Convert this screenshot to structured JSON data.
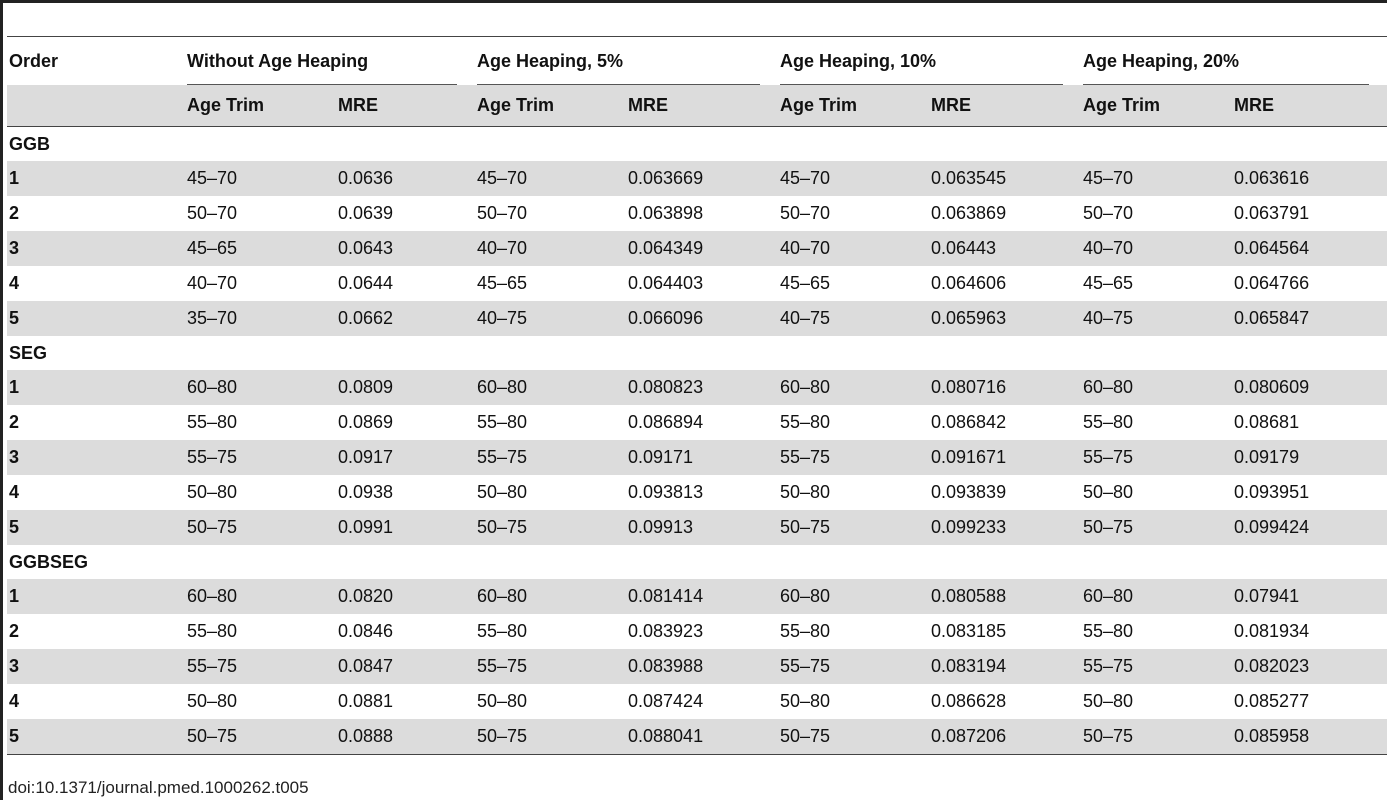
{
  "table": {
    "col_order": "Order",
    "groups": [
      "Without Age Heaping",
      "Age Heaping, 5%",
      "Age Heaping, 10%",
      "Age Heaping, 20%"
    ],
    "sub_age": "Age Trim",
    "sub_mre": "MRE",
    "sections": [
      {
        "name": "GGB",
        "rows": [
          [
            "1",
            "45–70",
            "0.0636",
            "45–70",
            "0.063669",
            "45–70",
            "0.063545",
            "45–70",
            "0.063616"
          ],
          [
            "2",
            "50–70",
            "0.0639",
            "50–70",
            "0.063898",
            "50–70",
            "0.063869",
            "50–70",
            "0.063791"
          ],
          [
            "3",
            "45–65",
            "0.0643",
            "40–70",
            "0.064349",
            "40–70",
            "0.06443",
            "40–70",
            "0.064564"
          ],
          [
            "4",
            "40–70",
            "0.0644",
            "45–65",
            "0.064403",
            "45–65",
            "0.064606",
            "45–65",
            "0.064766"
          ],
          [
            "5",
            "35–70",
            "0.0662",
            "40–75",
            "0.066096",
            "40–75",
            "0.065963",
            "40–75",
            "0.065847"
          ]
        ]
      },
      {
        "name": "SEG",
        "rows": [
          [
            "1",
            "60–80",
            "0.0809",
            "60–80",
            "0.080823",
            "60–80",
            "0.080716",
            "60–80",
            "0.080609"
          ],
          [
            "2",
            "55–80",
            "0.0869",
            "55–80",
            "0.086894",
            "55–80",
            "0.086842",
            "55–80",
            "0.08681"
          ],
          [
            "3",
            "55–75",
            "0.0917",
            "55–75",
            "0.09171",
            "55–75",
            "0.091671",
            "55–75",
            "0.09179"
          ],
          [
            "4",
            "50–80",
            "0.0938",
            "50–80",
            "0.093813",
            "50–80",
            "0.093839",
            "50–80",
            "0.093951"
          ],
          [
            "5",
            "50–75",
            "0.0991",
            "50–75",
            "0.09913",
            "50–75",
            "0.099233",
            "50–75",
            "0.099424"
          ]
        ]
      },
      {
        "name": "GGBSEG",
        "rows": [
          [
            "1",
            "60–80",
            "0.0820",
            "60–80",
            "0.081414",
            "60–80",
            "0.080588",
            "60–80",
            "0.07941"
          ],
          [
            "2",
            "55–80",
            "0.0846",
            "55–80",
            "0.083923",
            "55–80",
            "0.083185",
            "55–80",
            "0.081934"
          ],
          [
            "3",
            "55–75",
            "0.0847",
            "55–75",
            "0.083988",
            "55–75",
            "0.083194",
            "55–75",
            "0.082023"
          ],
          [
            "4",
            "50–80",
            "0.0881",
            "50–80",
            "0.087424",
            "50–80",
            "0.086628",
            "50–80",
            "0.085277"
          ],
          [
            "5",
            "50–75",
            "0.0888",
            "50–75",
            "0.088041",
            "50–75",
            "0.087206",
            "50–75",
            "0.085958"
          ]
        ]
      }
    ]
  },
  "footer": {
    "doi": "doi:10.1371/journal.pmed.1000262.t005"
  },
  "colors": {
    "shade": "#dcdcdc",
    "rule": "#444444"
  }
}
